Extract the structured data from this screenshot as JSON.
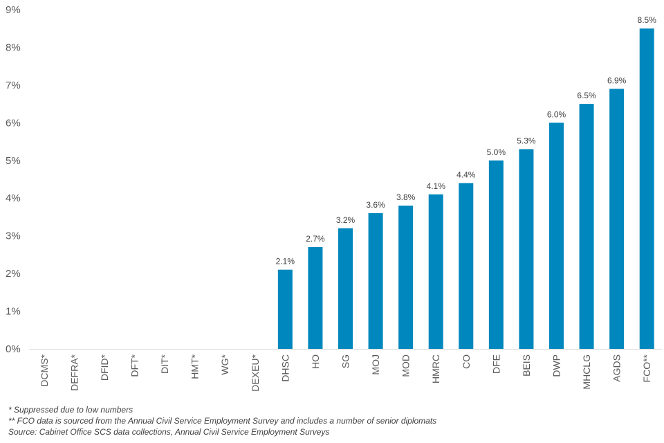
{
  "chart_data": {
    "type": "bar",
    "categories": [
      "DCMS*",
      "DEFRA*",
      "DFID*",
      "DFT*",
      "DIT*",
      "HMT*",
      "WG*",
      "DEXEU*",
      "DHSC",
      "HO",
      "SG",
      "MOJ",
      "MOD",
      "HMRC",
      "CO",
      "DFE",
      "BEIS",
      "DWP",
      "MHCLG",
      "AGDS",
      "FCO**"
    ],
    "values": [
      null,
      null,
      null,
      null,
      null,
      null,
      null,
      null,
      2.1,
      2.7,
      3.2,
      3.6,
      3.8,
      4.1,
      4.4,
      5.0,
      5.3,
      6.0,
      6.5,
      6.9,
      8.5
    ],
    "data_labels": [
      "",
      "",
      "",
      "",
      "",
      "",
      "",
      "",
      "2.1%",
      "2.7%",
      "3.2%",
      "3.6%",
      "3.8%",
      "4.1%",
      "4.4%",
      "5.0%",
      "5.3%",
      "6.0%",
      "6.5%",
      "6.9%",
      "8.5%"
    ],
    "y_ticks": [
      "0%",
      "1%",
      "2%",
      "3%",
      "4%",
      "5%",
      "6%",
      "7%",
      "8%",
      "9%"
    ],
    "ylim": [
      0,
      9
    ],
    "grid": false,
    "legend": "none",
    "bar_color": "#0087bd",
    "title": "",
    "xlabel": "",
    "ylabel": ""
  },
  "notes": [
    "* Suppressed due to low numbers",
    "** FCO data is sourced from the Annual Civil Service Employment Survey and includes a number of senior diplomats",
    "Source: Cabinet Office SCS data collections, Annual Civil Service Employment Surveys"
  ]
}
